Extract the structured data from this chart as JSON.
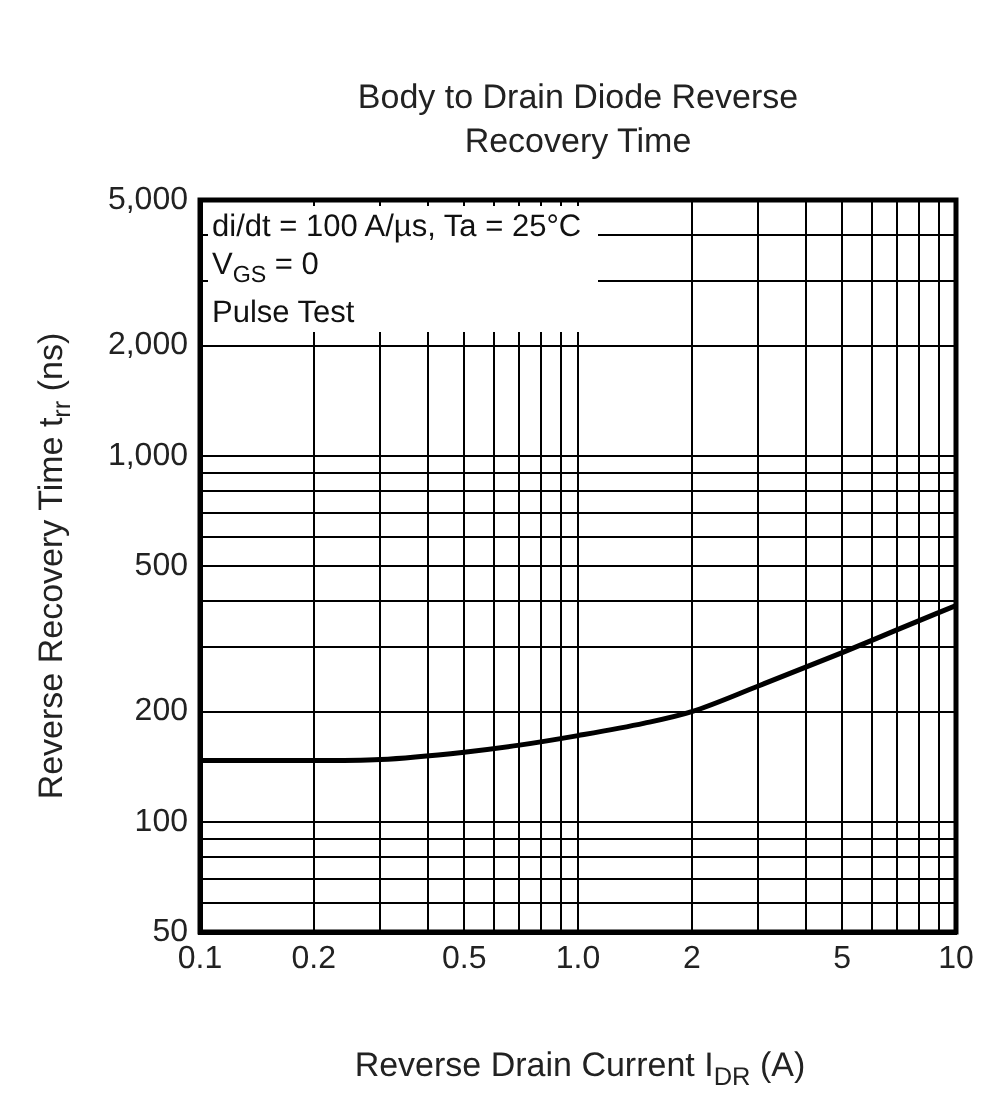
{
  "chart_data": {
    "type": "line",
    "title": "Body to Drain Diode Reverse Recovery Time",
    "xlabel": "Reverse Drain Current  I$_{DR}$  (A)",
    "ylabel": "Reverse Recovery Time  t$_{rr}$  (ns)",
    "annotations": [
      "di/dt = 100 A/µs, Ta = 25°C",
      "V$_{GS}$ = 0",
      "Pulse Test"
    ],
    "x": [
      0.1,
      0.2,
      0.3,
      0.5,
      0.7,
      1.0,
      1.5,
      2,
      3,
      5,
      7,
      10
    ],
    "series": [
      {
        "color": "#000000",
        "values": [
          147,
          147,
          148,
          155,
          162,
          172,
          186,
          200,
          235,
          290,
          335,
          390
        ]
      }
    ],
    "log": "xy",
    "grid": true,
    "legend": false,
    "marker": "none",
    "line_style": "solid",
    "xlim": [
      0.1,
      10
    ],
    "xticks": [
      0.1,
      0.2,
      0.5,
      {
        "value": 1,
        "label": "1.0"
      },
      2,
      5,
      10
    ],
    "ylim": [
      50,
      5000
    ],
    "yticks": [
      50,
      100,
      200,
      500,
      {
        "value": 1000,
        "label": "1,000"
      },
      {
        "value": 2000,
        "label": "2,000"
      },
      {
        "value": 5000,
        "label": "5,000"
      }
    ]
  }
}
